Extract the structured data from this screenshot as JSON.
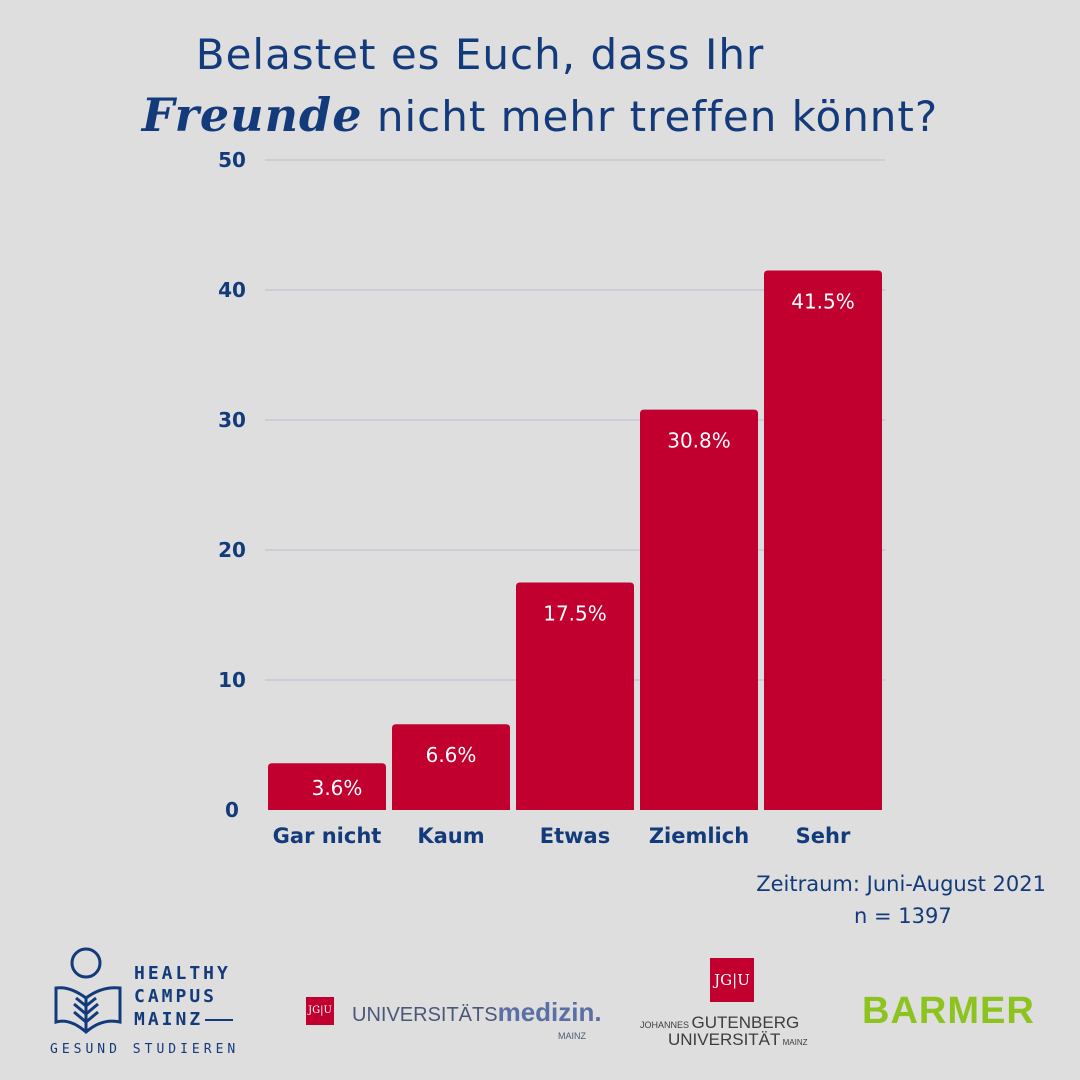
{
  "title": {
    "line1": "Belastet es Euch, dass Ihr",
    "line2_emphasis": "Freunde",
    "line2_rest": "nicht mehr treffen könnt?"
  },
  "colors": {
    "background": "#dedede",
    "bar": "#c1002f",
    "text": "#133a7a",
    "grid": "#b9bfd0",
    "bar_label": "#ffffff",
    "barmer": "#8cc31e"
  },
  "chart_data": {
    "type": "bar",
    "categories": [
      "Gar nicht",
      "Kaum",
      "Etwas",
      "Ziemlich",
      "Sehr"
    ],
    "values": [
      3.6,
      6.6,
      17.5,
      30.8,
      41.5
    ],
    "data_labels": [
      "3.6%",
      "6.6%",
      "17.5%",
      "30.8%",
      "41.5%"
    ],
    "title": "Belastet es Euch, dass Ihr Freunde nicht mehr treffen könnt?",
    "xlabel": "",
    "ylabel": "",
    "ylim": [
      0,
      50
    ],
    "yticks": [
      0,
      10,
      20,
      30,
      40,
      50
    ],
    "grid": true,
    "legend": "none"
  },
  "footnote": {
    "period": "Zeitraum: Juni-August 2021",
    "sample": "n = 1397"
  },
  "logos": {
    "hcm_line1": "HEALTHY",
    "hcm_line2": "CAMPUS",
    "hcm_line3": "MAINZ",
    "hcm_tagline": "GESUND STUDIEREN",
    "um_box": "JG|U",
    "um_text_a": "UNIVERSITÄTS",
    "um_text_b": "medizin.",
    "um_sub": "MAINZ",
    "jgu_box": "JG|U",
    "jgu_line1_a": "JOHANNES ",
    "jgu_line1_b": "GUTENBERG",
    "jgu_line2_a": "UNIVERSITÄT",
    "jgu_line2_b": " MAINZ",
    "barmer": "BARMER",
    "hcm_icon": "person-reading-book-icon"
  }
}
